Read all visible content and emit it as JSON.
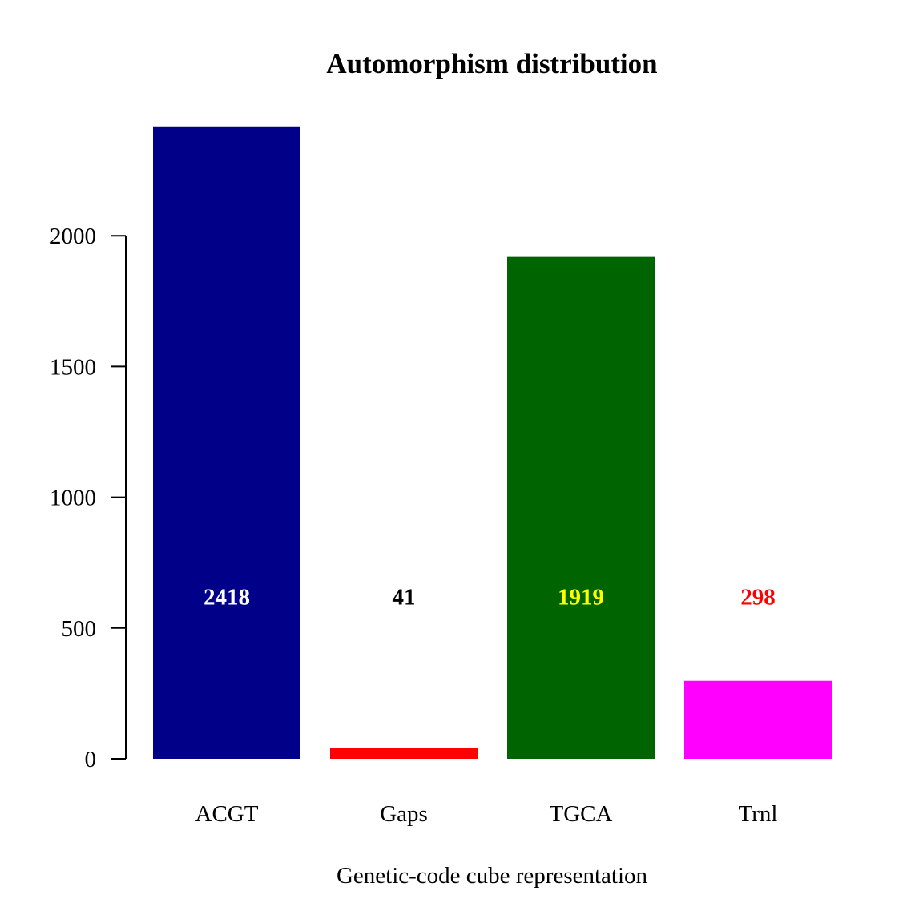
{
  "chart_data": {
    "type": "bar",
    "title": "Automorphism distribution",
    "xlabel": "Genetic-code cube representation",
    "ylabel": "",
    "categories": [
      "ACGT",
      "Gaps",
      "TGCA",
      "Trnl"
    ],
    "values": [
      2418,
      41,
      1919,
      298
    ],
    "value_labels": [
      "2418",
      "41",
      "1919",
      "298"
    ],
    "bar_colors": [
      "#000088",
      "#ff0000",
      "#006400",
      "#ff00ff"
    ],
    "value_label_colors": [
      "#ffffff",
      "#000000",
      "#ffff00",
      "#ff0000"
    ],
    "value_label_level": 620,
    "yticks": [
      0,
      500,
      1000,
      1500,
      2000
    ],
    "ytick_labels": [
      "0",
      "500",
      "1000",
      "1500",
      "2000"
    ],
    "ylim": [
      0,
      2418
    ],
    "grid": false,
    "legend": "none"
  }
}
